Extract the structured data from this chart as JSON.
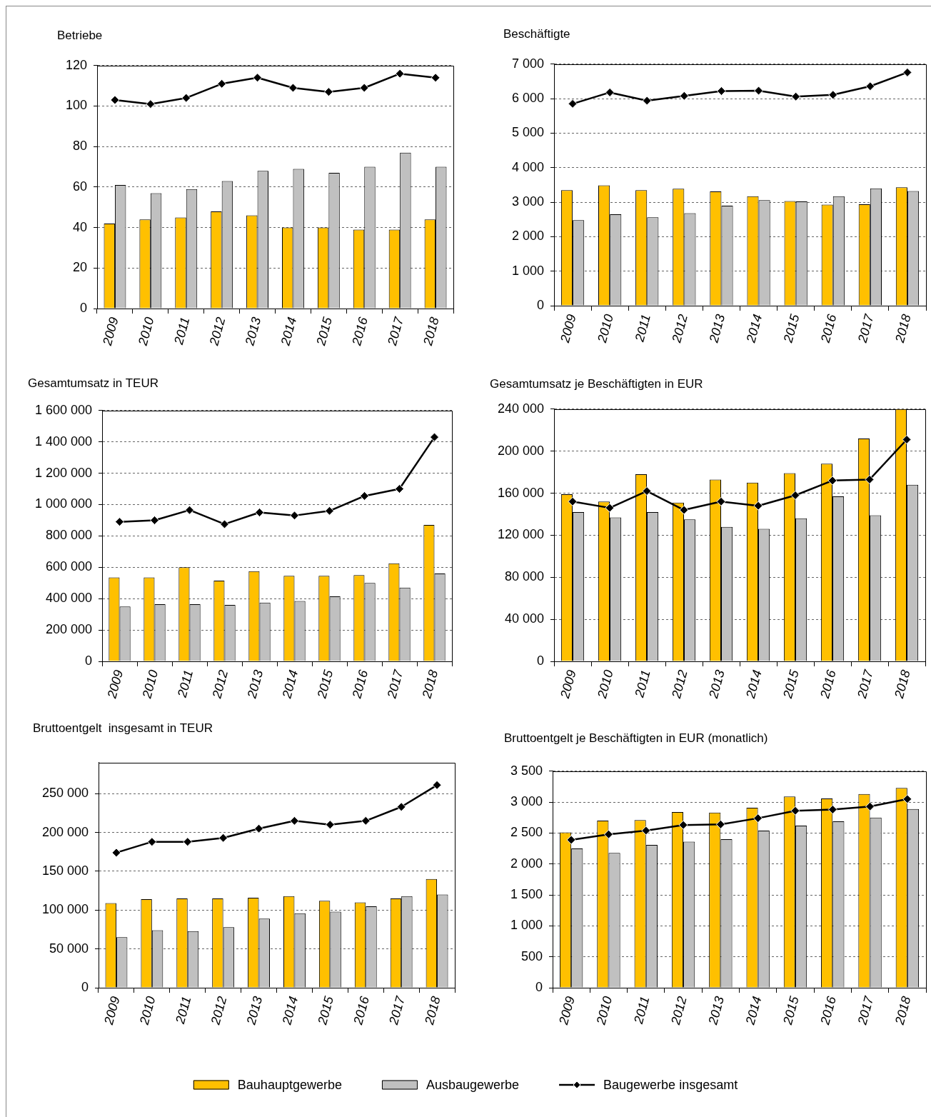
{
  "chart_data": [
    {
      "type": "bar",
      "title": "Betriebe",
      "categories": [
        "2009",
        "2010",
        "2011",
        "2012",
        "2013",
        "2014",
        "2015",
        "2016",
        "2017",
        "2018"
      ],
      "series": [
        {
          "color": "#ffc000",
          "values": [
            42,
            44,
            45,
            48,
            46,
            40,
            40,
            39,
            39,
            44
          ]
        },
        {
          "color": "#c0c0c0",
          "values": [
            61,
            57,
            59,
            63,
            68,
            69,
            67,
            70,
            77,
            70
          ]
        },
        {
          "type": "line",
          "color": "#000000",
          "values": [
            103,
            101,
            104,
            111,
            114,
            109,
            107,
            109,
            116,
            114
          ]
        }
      ],
      "ylim": [
        0,
        120
      ],
      "yticks": [
        0,
        20,
        40,
        60,
        80,
        100,
        120
      ],
      "grid": "y",
      "marker": "diamond"
    },
    {
      "type": "bar",
      "title": "Beschäftigte",
      "categories": [
        "2009",
        "2010",
        "2011",
        "2012",
        "2013",
        "2014",
        "2015",
        "2016",
        "2017",
        "2018"
      ],
      "series": [
        {
          "color": "#ffc000",
          "values": [
            3350,
            3490,
            3350,
            3390,
            3310,
            3170,
            3030,
            2930,
            2940,
            3430
          ]
        },
        {
          "color": "#c0c0c0",
          "values": [
            2480,
            2650,
            2560,
            2680,
            2900,
            3060,
            3020,
            3170,
            3400,
            3320
          ]
        },
        {
          "type": "line",
          "color": "#000000",
          "values": [
            5850,
            6180,
            5940,
            6080,
            6220,
            6230,
            6060,
            6110,
            6360,
            6760
          ]
        }
      ],
      "ylim": [
        0,
        7000
      ],
      "yticks": [
        0,
        {
          "value": 1000,
          "label": "1 000"
        },
        {
          "value": 2000,
          "label": "2 000"
        },
        {
          "value": 3000,
          "label": "3 000"
        },
        {
          "value": 4000,
          "label": "4 000"
        },
        {
          "value": 5000,
          "label": "5 000"
        },
        {
          "value": 6000,
          "label": "6 000"
        },
        {
          "value": 7000,
          "label": "7 000"
        }
      ],
      "grid": "y",
      "marker": "diamond"
    },
    {
      "type": "bar",
      "title": "Gesamtumsatz in TEUR",
      "categories": [
        "2009",
        "2010",
        "2011",
        "2012",
        "2013",
        "2014",
        "2015",
        "2016",
        "2017",
        "2018"
      ],
      "series": [
        {
          "color": "#ffc000",
          "values": [
            535000,
            535000,
            600000,
            515000,
            575000,
            545000,
            545000,
            550000,
            625000,
            870000
          ]
        },
        {
          "color": "#c0c0c0",
          "values": [
            350000,
            365000,
            365000,
            360000,
            375000,
            385000,
            415000,
            500000,
            470000,
            560000
          ]
        },
        {
          "type": "line",
          "color": "#000000",
          "values": [
            890000,
            900000,
            965000,
            875000,
            950000,
            930000,
            960000,
            1055000,
            1100000,
            1430000
          ]
        }
      ],
      "ylim": [
        0,
        1600000
      ],
      "yticks": [
        0,
        {
          "value": 200000,
          "label": "200 000"
        },
        {
          "value": 400000,
          "label": "400 000"
        },
        {
          "value": 600000,
          "label": "600 000"
        },
        {
          "value": 800000,
          "label": "800 000"
        },
        {
          "value": 1000000,
          "label": "1 000 000"
        },
        {
          "value": 1200000,
          "label": "1 200 000"
        },
        {
          "value": 1400000,
          "label": "1 400 000"
        },
        {
          "value": 1600000,
          "label": "1 600 000"
        }
      ],
      "grid": "y",
      "marker": "diamond"
    },
    {
      "type": "bar",
      "title": "Gesamtumsatz je Beschäftigten in EUR",
      "categories": [
        "2009",
        "2010",
        "2011",
        "2012",
        "2013",
        "2014",
        "2015",
        "2016",
        "2017",
        "2018"
      ],
      "series": [
        {
          "color": "#ffc000",
          "values": [
            159000,
            152000,
            178000,
            151000,
            173000,
            170000,
            179000,
            188000,
            212000,
            240000
          ]
        },
        {
          "color": "#c0c0c0",
          "values": [
            142000,
            137000,
            142000,
            135000,
            128000,
            126000,
            136000,
            157000,
            139000,
            168000
          ]
        },
        {
          "type": "line",
          "color": "#000000",
          "values": [
            152000,
            146000,
            162000,
            144000,
            152000,
            148000,
            158000,
            172000,
            173000,
            211000
          ]
        }
      ],
      "ylim": [
        0,
        240000
      ],
      "yticks": [
        0,
        {
          "value": 40000,
          "label": "40 000"
        },
        {
          "value": 80000,
          "label": "80 000"
        },
        {
          "value": 120000,
          "label": "120 000"
        },
        {
          "value": 160000,
          "label": "160 000"
        },
        {
          "value": 200000,
          "label": "200 000"
        },
        {
          "value": 240000,
          "label": "240 000"
        }
      ],
      "grid": "y",
      "marker": "diamond"
    },
    {
      "type": "bar",
      "title": "Bruttoentgelt  insgesamt in TEUR",
      "categories": [
        "2009",
        "2010",
        "2011",
        "2012",
        "2013",
        "2014",
        "2015",
        "2016",
        "2017",
        "2018"
      ],
      "series": [
        {
          "color": "#ffc000",
          "values": [
            109000,
            114000,
            115000,
            115000,
            116000,
            118000,
            112000,
            110000,
            115000,
            140000
          ]
        },
        {
          "color": "#c0c0c0",
          "values": [
            65000,
            74000,
            73000,
            78000,
            89000,
            96000,
            98000,
            105000,
            118000,
            120000
          ]
        },
        {
          "type": "line",
          "color": "#000000",
          "values": [
            174000,
            188000,
            188000,
            193000,
            205000,
            215000,
            210000,
            215000,
            233000,
            261000
          ]
        }
      ],
      "ylim": [
        0,
        290000
      ],
      "yticks": [
        0,
        {
          "value": 50000,
          "label": "50 000"
        },
        {
          "value": 100000,
          "label": "100 000"
        },
        {
          "value": 150000,
          "label": "150 000"
        },
        {
          "value": 200000,
          "label": "200 000"
        },
        {
          "value": 250000,
          "label": "250 000"
        }
      ],
      "grid": "y",
      "marker": "diamond"
    },
    {
      "type": "bar",
      "title": "Bruttoentgelt je Beschäftigten in EUR (monatlich)",
      "categories": [
        "2009",
        "2010",
        "2011",
        "2012",
        "2013",
        "2014",
        "2015",
        "2016",
        "2017",
        "2018"
      ],
      "series": [
        {
          "name": "Bauhauptgewerbe",
          "color": "#ffc000",
          "values": [
            2510,
            2700,
            2710,
            2840,
            2830,
            2910,
            3090,
            3060,
            3130,
            3230
          ]
        },
        {
          "name": "Ausbaugewerbe",
          "color": "#c0c0c0",
          "values": [
            2250,
            2180,
            2310,
            2360,
            2400,
            2540,
            2620,
            2690,
            2750,
            2890
          ]
        },
        {
          "name": "Baugewerbe insgesamt",
          "type": "line",
          "color": "#000000",
          "values": [
            2390,
            2480,
            2540,
            2630,
            2640,
            2740,
            2860,
            2880,
            2930,
            3050
          ]
        }
      ],
      "ylim": [
        0,
        3500
      ],
      "yticks": [
        0,
        500,
        {
          "value": 1000,
          "label": "1 000"
        },
        {
          "value": 1500,
          "label": "1 500"
        },
        {
          "value": 2000,
          "label": "2 000"
        },
        {
          "value": 2500,
          "label": "2 500"
        },
        {
          "value": 3000,
          "label": "3 000"
        },
        {
          "value": 3500,
          "label": "3 500"
        }
      ],
      "grid": "y",
      "marker": "diamond",
      "legend": "bottom"
    }
  ]
}
